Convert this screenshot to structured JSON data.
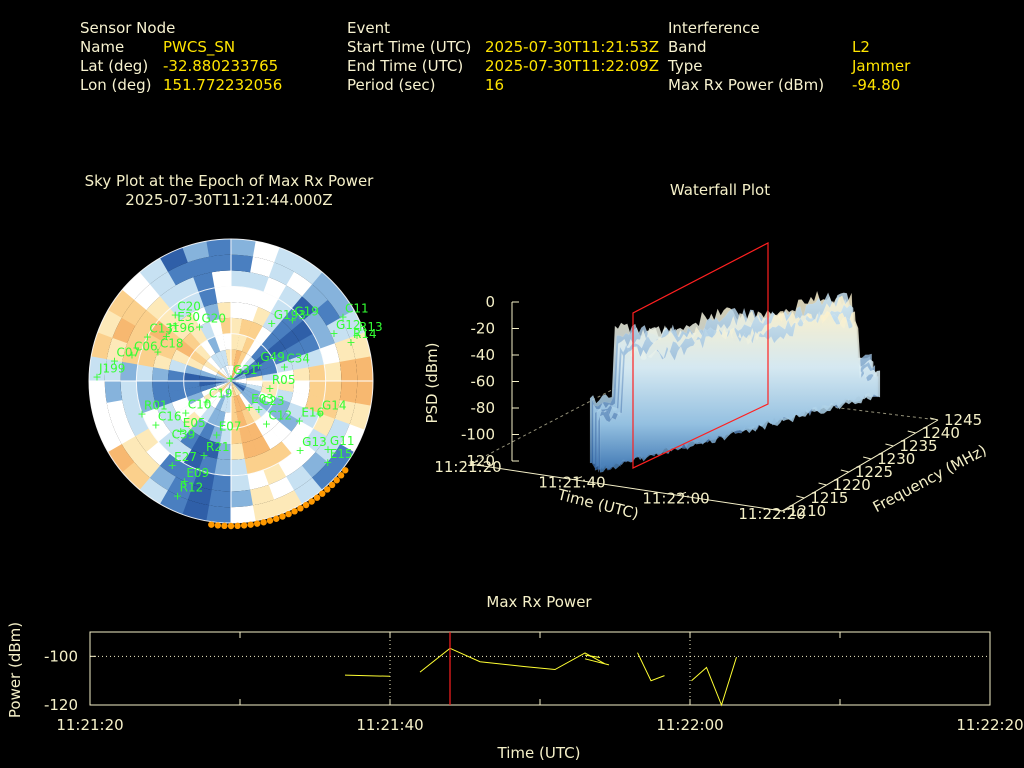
{
  "header": {
    "sensor": {
      "title": "Sensor Node",
      "name_label": "Name",
      "name": "PWCS_SN",
      "lat_label": "Lat (deg)",
      "lat": "-32.880233765",
      "lon_label": "Lon (deg)",
      "lon": "151.772232056"
    },
    "event": {
      "title": "Event",
      "start_label": "Start Time (UTC)",
      "start": "2025-07-30T11:21:53Z",
      "end_label": "End Time (UTC)",
      "end": "2025-07-30T11:22:09Z",
      "period_label": "Period (sec)",
      "period": "16"
    },
    "interference": {
      "title": "Interference",
      "band_label": "Band",
      "band": "L2",
      "type_label": "Type",
      "type": "Jammer",
      "maxrx_label": "Max Rx Power (dBm)",
      "maxrx": "-94.80"
    }
  },
  "colors": {
    "text": "#f5f0c8",
    "value": "#ffe400",
    "sat": "#33ff33",
    "trace": "#ffff33",
    "marker": "#ff2020",
    "orange": "#ff9900"
  },
  "chart_data": [
    {
      "type": "scatter",
      "title": "Sky Plot at the Epoch of Max Rx Power",
      "subtitle": "2025-07-30T11:21:44.000Z",
      "satellites": [
        {
          "id": "G31",
          "az": 0,
          "el": 88
        },
        {
          "id": "G193",
          "az": 35,
          "el": 45
        },
        {
          "id": "G19",
          "az": 45,
          "el": 35
        },
        {
          "id": "C11",
          "az": 60,
          "el": 8
        },
        {
          "id": "G12",
          "az": 65,
          "el": 18
        },
        {
          "id": "R14",
          "az": 72,
          "el": 10
        },
        {
          "id": "R13",
          "az": 70,
          "el": 5
        },
        {
          "id": "C34",
          "az": 75,
          "el": 55
        },
        {
          "id": "G49",
          "az": 60,
          "el": 70
        },
        {
          "id": "G20",
          "az": 330,
          "el": 50
        },
        {
          "id": "C20",
          "az": 320,
          "el": 35
        },
        {
          "id": "E30",
          "az": 315,
          "el": 40
        },
        {
          "id": "J196",
          "az": 305,
          "el": 40
        },
        {
          "id": "C13",
          "az": 298,
          "el": 30
        },
        {
          "id": "C18",
          "az": 292,
          "el": 40
        },
        {
          "id": "C06",
          "az": 285,
          "el": 25
        },
        {
          "id": "C07",
          "az": 280,
          "el": 15
        },
        {
          "id": "J199",
          "az": 272,
          "el": 5
        },
        {
          "id": "R01",
          "az": 250,
          "el": 30
        },
        {
          "id": "C16",
          "az": 240,
          "el": 35
        },
        {
          "id": "E05",
          "az": 225,
          "el": 45
        },
        {
          "id": "C10",
          "az": 235,
          "el": 55
        },
        {
          "id": "C39",
          "az": 225,
          "el": 35
        },
        {
          "id": "E27",
          "az": 215,
          "el": 25
        },
        {
          "id": "R21",
          "az": 200,
          "el": 40
        },
        {
          "id": "E09",
          "az": 205,
          "el": 20
        },
        {
          "id": "R12",
          "az": 205,
          "el": 10
        },
        {
          "id": "E07",
          "az": 195,
          "el": 55
        },
        {
          "id": "C12",
          "az": 140,
          "el": 55
        },
        {
          "id": "G13",
          "az": 135,
          "el": 28
        },
        {
          "id": "G11",
          "az": 125,
          "el": 15
        },
        {
          "id": "E15",
          "az": 130,
          "el": 10
        },
        {
          "id": "E16",
          "az": 120,
          "el": 40
        },
        {
          "id": "G14",
          "az": 110,
          "el": 30
        },
        {
          "id": "C23",
          "az": 135,
          "el": 65
        },
        {
          "id": "R05",
          "az": 100,
          "el": 65
        },
        {
          "id": "E03",
          "az": 145,
          "el": 70
        },
        {
          "id": "C19",
          "az": 230,
          "el": 70
        }
      ]
    },
    {
      "type": "area",
      "title": "Waterfall Plot",
      "xlabel": "Time (UTC)",
      "ylabel": "Frequency (MHz)",
      "zlabel": "PSD (dBm)",
      "x_ticks": [
        "11:21:20",
        "11:21:40",
        "11:22:00",
        "11:22:20"
      ],
      "y_ticks": [
        "1210",
        "1215",
        "1220",
        "1225",
        "1230",
        "1235",
        "1240",
        "1245"
      ],
      "z_ticks": [
        "0",
        "-20",
        "-40",
        "-60",
        "-80",
        "-100",
        "-120"
      ],
      "zlim": [
        -120,
        0
      ],
      "marker_time": "11:21:44"
    },
    {
      "type": "line",
      "title": "Max Rx Power",
      "xlabel": "Time (UTC)",
      "ylabel": "Power (dBm)",
      "x_ticks": [
        "11:21:20",
        "11:21:40",
        "11:22:00",
        "11:22:20"
      ],
      "y_ticks": [
        "-100",
        "-120"
      ],
      "ylim": [
        -120,
        -90
      ],
      "xlim_sec": [
        0,
        60
      ],
      "marker_sec": 24,
      "segments": [
        [
          [
            17,
            -107.7
          ],
          [
            20,
            -108.2
          ]
        ],
        [
          [
            22,
            -106.5
          ],
          [
            24,
            -96.7
          ],
          [
            26,
            -102.2
          ],
          [
            29,
            -104.2
          ],
          [
            31,
            -105.4
          ],
          [
            33,
            -98.6
          ],
          [
            34.3,
            -103.0
          ]
        ],
        [
          [
            33,
            -99.5
          ],
          [
            34,
            -100.5
          ]
        ],
        [
          [
            33,
            -101.0
          ],
          [
            34.6,
            -103.5
          ]
        ],
        [
          [
            36.5,
            -98.5
          ],
          [
            37.4,
            -110.0
          ],
          [
            38.3,
            -107.9
          ]
        ],
        [
          [
            40.1,
            -110.0
          ],
          [
            41.1,
            -104.6
          ],
          [
            42.1,
            -120.0
          ],
          [
            43.1,
            -100.3
          ]
        ]
      ]
    }
  ]
}
